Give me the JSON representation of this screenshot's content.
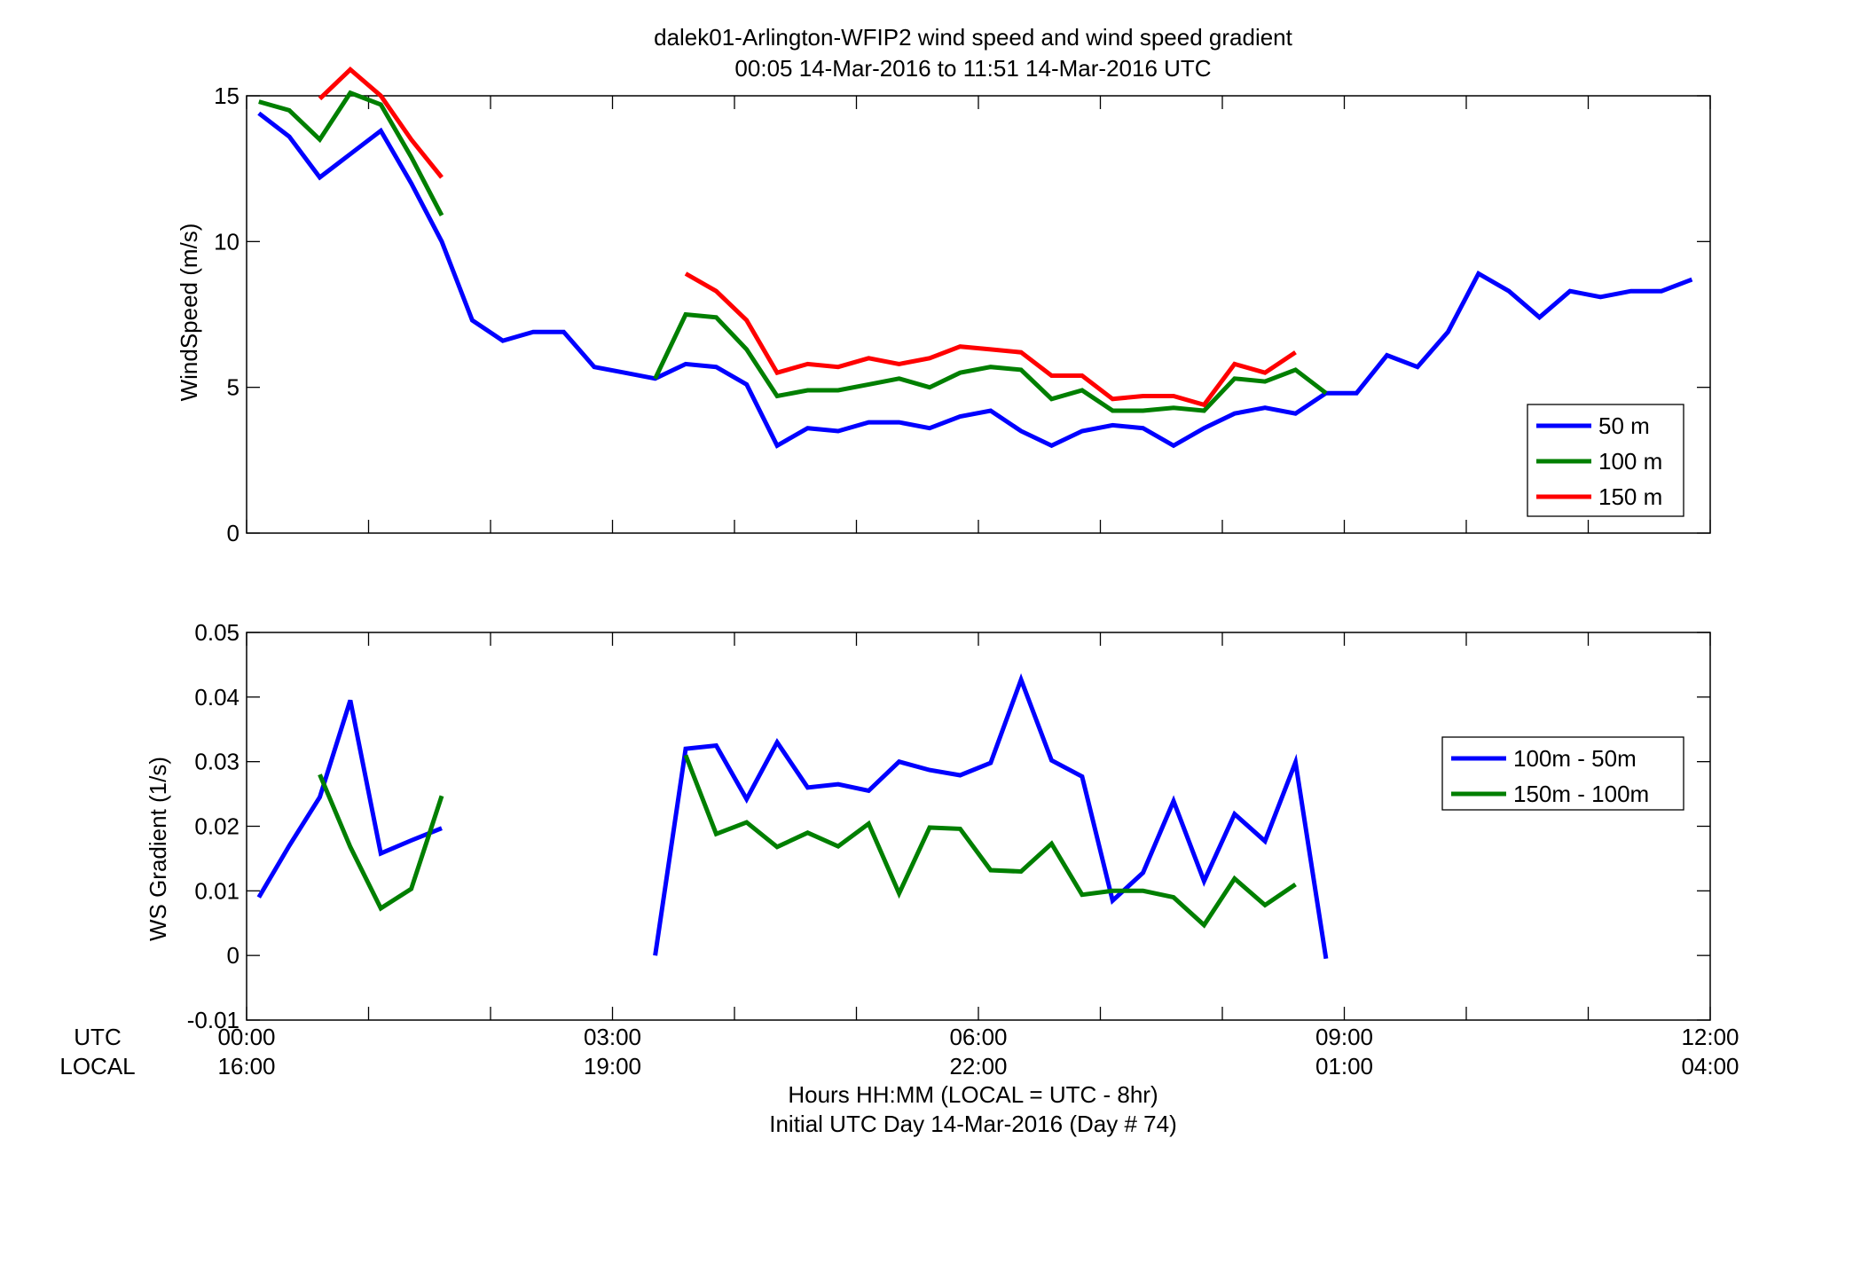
{
  "title_line1": "dalek01-Arlington-WFIP2  wind speed and wind speed gradient",
  "title_line2": "00:05 14-Mar-2016 to 11:51 14-Mar-2016  UTC",
  "xlabel_line1": "Hours HH:MM  (LOCAL = UTC - 8hr)",
  "xlabel_line2": "Initial UTC Day 14-Mar-2016 (Day # 74)",
  "row_label_utc": "UTC",
  "row_label_local": "LOCAL",
  "chart_data": [
    {
      "type": "line",
      "ylabel": "WindSpeed (m/s)",
      "xlim": [
        0,
        12
      ],
      "ylim": [
        0,
        15
      ],
      "y_ticks": [
        "0",
        "5",
        "10",
        "15"
      ],
      "x_tick_labels_utc": [
        "00:00",
        "03:00",
        "06:00",
        "09:00",
        "12:00"
      ],
      "x_tick_labels_local": [
        "16:00",
        "19:00",
        "22:00",
        "01:00",
        "04:00"
      ],
      "legend_position": "lower-right",
      "series": [
        {
          "name": "50 m",
          "color": "#0000ff",
          "points": [
            [
              0.1,
              14.4
            ],
            [
              0.35,
              13.6
            ],
            [
              0.6,
              12.2
            ],
            [
              0.85,
              13.0
            ],
            [
              1.1,
              13.8
            ],
            [
              1.35,
              12.0
            ],
            [
              1.6,
              10.0
            ],
            [
              1.85,
              7.3
            ],
            [
              2.1,
              6.6
            ],
            [
              2.35,
              6.9
            ],
            [
              2.6,
              6.9
            ],
            [
              2.85,
              5.7
            ],
            [
              3.1,
              5.5
            ],
            [
              3.35,
              5.3
            ],
            [
              3.6,
              5.8
            ],
            [
              3.85,
              5.7
            ],
            [
              4.1,
              5.1
            ],
            [
              4.35,
              3.0
            ],
            [
              4.6,
              3.6
            ],
            [
              4.85,
              3.5
            ],
            [
              5.1,
              3.8
            ],
            [
              5.35,
              3.8
            ],
            [
              5.6,
              3.6
            ],
            [
              5.85,
              4.0
            ],
            [
              6.1,
              4.2
            ],
            [
              6.35,
              3.5
            ],
            [
              6.6,
              3.0
            ],
            [
              6.85,
              3.5
            ],
            [
              7.1,
              3.7
            ],
            [
              7.35,
              3.6
            ],
            [
              7.6,
              3.0
            ],
            [
              7.85,
              3.6
            ],
            [
              8.1,
              4.1
            ],
            [
              8.35,
              4.3
            ],
            [
              8.6,
              4.1
            ],
            [
              8.85,
              4.8
            ],
            [
              9.1,
              4.8
            ],
            [
              9.35,
              6.1
            ],
            [
              9.6,
              5.7
            ],
            [
              9.85,
              6.9
            ],
            [
              10.1,
              8.9
            ],
            [
              10.35,
              8.3
            ],
            [
              10.6,
              7.4
            ],
            [
              10.85,
              8.3
            ],
            [
              11.1,
              8.1
            ],
            [
              11.35,
              8.3
            ],
            [
              11.6,
              8.3
            ],
            [
              11.85,
              8.7
            ]
          ]
        },
        {
          "name": "100 m",
          "color": "#007f00",
          "points": [
            [
              0.1,
              14.8
            ],
            [
              0.35,
              14.5
            ],
            [
              0.6,
              13.5
            ],
            [
              0.85,
              15.1
            ],
            [
              1.1,
              14.7
            ],
            [
              1.35,
              12.9
            ],
            [
              1.6,
              10.9
            ],
            [
              null,
              null
            ],
            [
              3.35,
              5.3
            ],
            [
              3.6,
              7.5
            ],
            [
              3.85,
              7.4
            ],
            [
              4.1,
              6.3
            ],
            [
              4.35,
              4.7
            ],
            [
              4.6,
              4.9
            ],
            [
              4.85,
              4.9
            ],
            [
              5.1,
              5.1
            ],
            [
              5.35,
              5.3
            ],
            [
              5.6,
              5.0
            ],
            [
              5.85,
              5.5
            ],
            [
              6.1,
              5.7
            ],
            [
              6.35,
              5.6
            ],
            [
              6.6,
              4.6
            ],
            [
              6.85,
              4.9
            ],
            [
              7.1,
              4.2
            ],
            [
              7.35,
              4.2
            ],
            [
              7.6,
              4.3
            ],
            [
              7.85,
              4.2
            ],
            [
              8.1,
              5.3
            ],
            [
              8.35,
              5.2
            ],
            [
              8.6,
              5.6
            ],
            [
              8.85,
              4.8
            ]
          ]
        },
        {
          "name": "150 m",
          "color": "#ff0000",
          "points": [
            [
              0.6,
              14.9
            ],
            [
              0.85,
              15.9
            ],
            [
              1.1,
              15.0
            ],
            [
              1.35,
              13.5
            ],
            [
              1.6,
              12.2
            ],
            [
              null,
              null
            ],
            [
              3.6,
              8.9
            ],
            [
              3.85,
              8.3
            ],
            [
              4.1,
              7.3
            ],
            [
              4.35,
              5.5
            ],
            [
              4.6,
              5.8
            ],
            [
              4.85,
              5.7
            ],
            [
              5.1,
              6.0
            ],
            [
              5.35,
              5.8
            ],
            [
              5.6,
              6.0
            ],
            [
              5.85,
              6.4
            ],
            [
              6.1,
              6.3
            ],
            [
              6.35,
              6.2
            ],
            [
              6.6,
              5.4
            ],
            [
              6.85,
              5.4
            ],
            [
              7.1,
              4.6
            ],
            [
              7.35,
              4.7
            ],
            [
              7.6,
              4.7
            ],
            [
              7.85,
              4.4
            ],
            [
              8.1,
              5.8
            ],
            [
              8.35,
              5.5
            ],
            [
              8.6,
              6.2
            ]
          ]
        }
      ]
    },
    {
      "type": "line",
      "ylabel": "WS Gradient (1/s)",
      "xlim": [
        0,
        12
      ],
      "ylim": [
        -0.01,
        0.05
      ],
      "y_ticks": [
        "-0.01",
        "0",
        "0.01",
        "0.02",
        "0.03",
        "0.04",
        "0.05"
      ],
      "x_tick_labels_utc": [
        "00:00",
        "03:00",
        "06:00",
        "09:00",
        "12:00"
      ],
      "x_tick_labels_local": [
        "16:00",
        "19:00",
        "22:00",
        "01:00",
        "04:00"
      ],
      "legend_position": "upper-right",
      "series": [
        {
          "name": "100m - 50m",
          "color": "#0000ff",
          "points": [
            [
              0.1,
              0.009
            ],
            [
              0.35,
              0.017
            ],
            [
              0.6,
              0.0245
            ],
            [
              0.85,
              0.0395
            ],
            [
              1.1,
              0.0158
            ],
            [
              1.35,
              0.0178
            ],
            [
              1.6,
              0.0197
            ],
            [
              null,
              null
            ],
            [
              3.35,
              0.0
            ],
            [
              3.6,
              0.032
            ],
            [
              3.85,
              0.0325
            ],
            [
              4.1,
              0.0242
            ],
            [
              4.35,
              0.033
            ],
            [
              4.6,
              0.026
            ],
            [
              4.85,
              0.0265
            ],
            [
              5.1,
              0.0255
            ],
            [
              5.35,
              0.03
            ],
            [
              5.6,
              0.0287
            ],
            [
              5.85,
              0.0279
            ],
            [
              6.1,
              0.0298
            ],
            [
              6.35,
              0.0427
            ],
            [
              6.6,
              0.0302
            ],
            [
              6.85,
              0.0277
            ],
            [
              7.1,
              0.0085
            ],
            [
              7.35,
              0.0128
            ],
            [
              7.6,
              0.0239
            ],
            [
              7.85,
              0.0115
            ],
            [
              8.1,
              0.0219
            ],
            [
              8.35,
              0.0177
            ],
            [
              8.6,
              0.0299
            ],
            [
              8.85,
              -0.0005
            ]
          ]
        },
        {
          "name": "150m - 100m",
          "color": "#007f00",
          "points": [
            [
              0.6,
              0.028
            ],
            [
              0.85,
              0.0168
            ],
            [
              1.1,
              0.0073
            ],
            [
              1.35,
              0.0103
            ],
            [
              1.6,
              0.0247
            ],
            [
              null,
              null
            ],
            [
              3.6,
              0.031
            ],
            [
              3.85,
              0.0188
            ],
            [
              4.1,
              0.0206
            ],
            [
              4.35,
              0.0168
            ],
            [
              4.6,
              0.019
            ],
            [
              4.85,
              0.0169
            ],
            [
              5.1,
              0.0204
            ],
            [
              5.35,
              0.0096
            ],
            [
              5.6,
              0.0198
            ],
            [
              5.85,
              0.0196
            ],
            [
              6.1,
              0.0132
            ],
            [
              6.35,
              0.013
            ],
            [
              6.6,
              0.0173
            ],
            [
              6.85,
              0.0094
            ],
            [
              7.1,
              0.01
            ],
            [
              7.35,
              0.01
            ],
            [
              7.6,
              0.009
            ],
            [
              7.85,
              0.0047
            ],
            [
              8.1,
              0.0119
            ],
            [
              8.35,
              0.0078
            ],
            [
              8.6,
              0.011
            ]
          ]
        }
      ]
    }
  ]
}
